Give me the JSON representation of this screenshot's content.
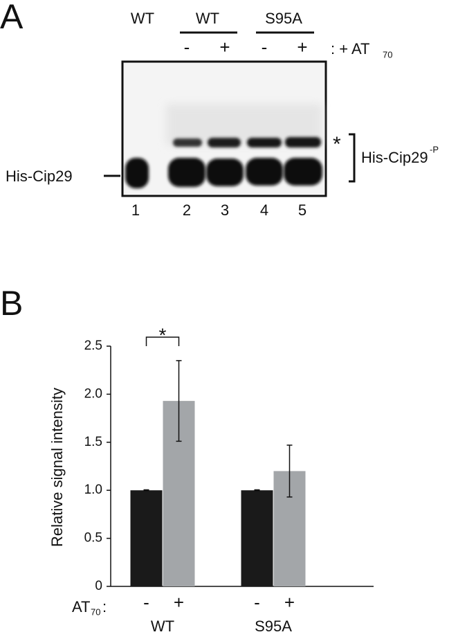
{
  "panel_a": {
    "label": "A",
    "groups": [
      "WT",
      "WT",
      "S95A"
    ],
    "treatments": [
      "-",
      "+",
      "-",
      "+"
    ],
    "treatment_label": ": + AT",
    "treatment_subscript": "70",
    "band_label": "His-Cip29",
    "star": "*",
    "bracket_label": "His-Cip29",
    "bracket_superscript": "-P",
    "lanes": [
      "1",
      "2",
      "3",
      "4",
      "5"
    ]
  },
  "chart_data": {
    "type": "bar",
    "panel": "B",
    "ylabel": "Relative signal intensity",
    "categories": [
      "WT",
      "S95A"
    ],
    "series": [
      {
        "name": "-",
        "color": "#1a1a1a",
        "values": [
          1.0,
          1.0
        ],
        "errors": [
          0.005,
          0.005
        ]
      },
      {
        "name": "+",
        "color": "#a3a6a9",
        "values": [
          1.93,
          1.2
        ],
        "errors": [
          0.42,
          0.27
        ]
      }
    ],
    "treatment_label": "AT",
    "treatment_subscript": "70",
    "treatment_suffix": ":",
    "significance": "*",
    "ylim": [
      0,
      2.5
    ],
    "yticks": [
      0,
      0.5,
      {
        "value": 1,
        "label": "1.0"
      },
      1.5,
      {
        "value": 2,
        "label": "2.0"
      },
      2.5
    ]
  }
}
